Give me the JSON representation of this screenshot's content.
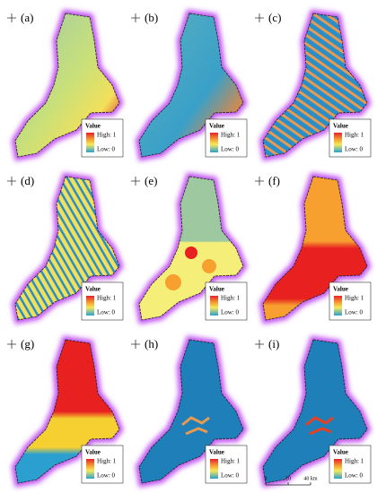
{
  "panels": [
    {
      "label": "(a)",
      "legend": {
        "title": "Value",
        "high": "High: 1",
        "low": "Low: 0"
      }
    },
    {
      "label": "(b)",
      "legend": {
        "title": "Value",
        "high": "High: 1",
        "low": "Low: 0"
      }
    },
    {
      "label": "(c)",
      "legend": {
        "title": "Value",
        "high": "High: 1",
        "low": "Low: 0"
      }
    },
    {
      "label": "(d)",
      "legend": {
        "title": "Value",
        "high": "High: 1",
        "low": "Low: 0"
      }
    },
    {
      "label": "(e)",
      "legend": {
        "title": "Value",
        "high": "High: 1",
        "low": "Low: 0"
      }
    },
    {
      "label": "(f)",
      "legend": {
        "title": "Value",
        "high": "High: 1",
        "low": "Low: 0"
      }
    },
    {
      "label": "(g)",
      "legend": {
        "title": "Value",
        "high": "High: 1",
        "low": "Low: 0"
      }
    },
    {
      "label": "(h)",
      "legend": {
        "title": "Value",
        "high": "High: 1",
        "low": "Low: 0"
      }
    },
    {
      "label": "(i)",
      "legend": {
        "title": "Value",
        "high": "High: 1",
        "low": "Low: 0"
      }
    }
  ],
  "scale_bar": {
    "labels": [
      "0",
      "20",
      "40 km"
    ]
  }
}
